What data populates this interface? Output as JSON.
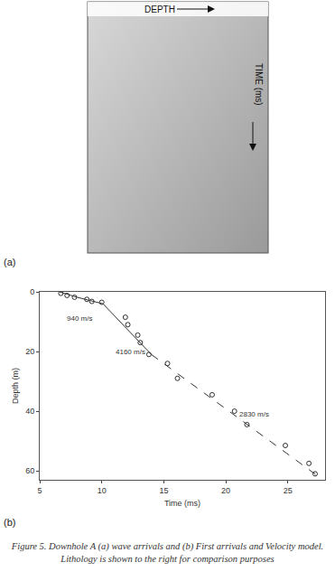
{
  "panel_a": {
    "label": "(a)",
    "x_label": "DEPTH",
    "y_label": "TIME (ms)"
  },
  "chart_data": {
    "type": "scatter",
    "label": "(b)",
    "x_title": "Time (ms)",
    "y_title": "Depth (m)",
    "xlim": [
      5,
      28
    ],
    "xticks": [
      5,
      10,
      15,
      20,
      25
    ],
    "ylim": [
      63,
      0
    ],
    "yticks": [
      0,
      20,
      40,
      60
    ],
    "grid": false,
    "series": [
      {
        "type": "scatter",
        "marker": "circle-open",
        "color": "#000000",
        "x": [
          6.7,
          7.2,
          7.8,
          8.8,
          9.2,
          10.0,
          11.9,
          12.1,
          12.9,
          13.1,
          13.8,
          15.3,
          16.1,
          18.9,
          20.7,
          21.7,
          24.8,
          26.7,
          27.2
        ],
        "values": [
          0.5,
          1.2,
          1.8,
          2.5,
          3.2,
          3.5,
          8.5,
          11,
          14.5,
          17,
          21,
          24,
          29,
          34.5,
          40,
          44.5,
          51.5,
          57.5,
          61
        ]
      },
      {
        "type": "line",
        "line_style": "solid",
        "color": "#333333",
        "x": [
          6.6,
          8.0,
          10.1
        ],
        "values": [
          0,
          1.8,
          4
        ]
      },
      {
        "type": "line",
        "line_style": "solid",
        "color": "#333333",
        "x": [
          10.1,
          14.0
        ],
        "values": [
          4,
          21
        ]
      },
      {
        "type": "line",
        "line_style": "dash",
        "color": "#333333",
        "x": [
          14.0,
          27.5
        ],
        "values": [
          21,
          62
        ]
      }
    ],
    "annotations": [
      {
        "text": "940 m/s",
        "x": 8.2,
        "y": 9
      },
      {
        "text": "4160 m/s",
        "x": 12.3,
        "y": 20
      },
      {
        "text": "2830 m/s",
        "x": 22.3,
        "y": 41
      }
    ]
  },
  "caption": "Figure 5. Downhole A (a) wave arrivals and (b) First arrivals and Velocity model. Lithology is shown to the right for comparison purposes"
}
